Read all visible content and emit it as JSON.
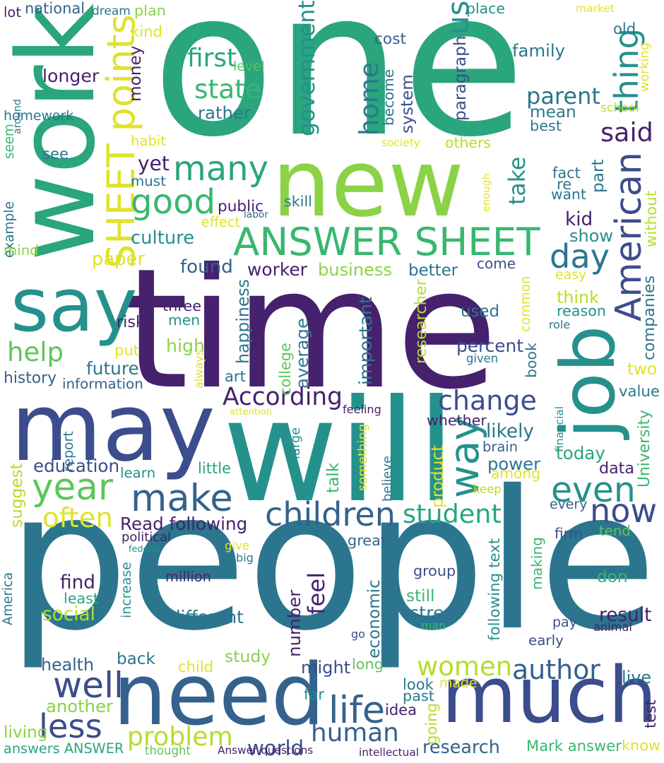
{
  "palette": {
    "dark_purple": "#46216d",
    "indigo": "#3b4d8c",
    "blue": "#34628c",
    "teal_blue": "#2b768e",
    "teal": "#24918c",
    "green_teal": "#2aa57e",
    "green": "#38b76f",
    "light_green": "#5ec55a",
    "lime": "#8bd247",
    "yellow_green": "#b6dd2d",
    "yellow": "#dfe32a"
  },
  "words": [
    {
      "text": "one",
      "color": "#2aa57e"
    },
    {
      "text": "people",
      "color": "#2b768e"
    },
    {
      "text": "time",
      "color": "#46216d"
    },
    {
      "text": "will",
      "color": "#24918c"
    },
    {
      "text": "may",
      "color": "#3b4d8c"
    },
    {
      "text": "work",
      "color": "#2aa57e"
    },
    {
      "text": "new",
      "color": "#8bd247"
    },
    {
      "text": "say",
      "color": "#24918c"
    },
    {
      "text": "need",
      "color": "#34628c"
    },
    {
      "text": "much",
      "color": "#3b4d8c"
    },
    {
      "text": "job",
      "color": "#24918c"
    },
    {
      "text": "ANSWER SHEET",
      "color": "#38b76f"
    },
    {
      "text": "SHEET points",
      "color": "#dfe32a"
    },
    {
      "text": "American",
      "color": "#3b4d8c"
    },
    {
      "text": "children",
      "color": "#34628c"
    },
    {
      "text": "make",
      "color": "#34628c"
    },
    {
      "text": "year",
      "color": "#5ec55a"
    },
    {
      "text": "many",
      "color": "#2aa57e"
    },
    {
      "text": "good",
      "color": "#38b76f"
    },
    {
      "text": "life",
      "color": "#34628c"
    },
    {
      "text": "human",
      "color": "#34628c"
    },
    {
      "text": "less",
      "color": "#3b4d8c"
    },
    {
      "text": "well",
      "color": "#3b4d8c"
    },
    {
      "text": "even",
      "color": "#24918c"
    },
    {
      "text": "now",
      "color": "#3b4d8c"
    },
    {
      "text": "way",
      "color": "#24918c"
    },
    {
      "text": "day",
      "color": "#2b768e"
    },
    {
      "text": "women",
      "color": "#b6dd2d"
    },
    {
      "text": "author",
      "color": "#34628c"
    },
    {
      "text": "problem",
      "color": "#b6dd2d"
    },
    {
      "text": "change",
      "color": "#3b4d8c"
    },
    {
      "text": "student",
      "color": "#2aa57e"
    },
    {
      "text": "help",
      "color": "#5ec55a"
    },
    {
      "text": "thing",
      "color": "#24918c"
    },
    {
      "text": "state",
      "color": "#38b76f"
    },
    {
      "text": "first",
      "color": "#2aa57e"
    },
    {
      "text": "us",
      "color": "#24918c"
    },
    {
      "text": "home",
      "color": "#2b768e"
    },
    {
      "text": "government",
      "color": "#24918c"
    },
    {
      "text": "take",
      "color": "#24918c"
    },
    {
      "text": "parent",
      "color": "#2b768e"
    },
    {
      "text": "said",
      "color": "#46216d"
    },
    {
      "text": "According",
      "color": "#46216d"
    },
    {
      "text": "world",
      "color": "#3b4d8c"
    },
    {
      "text": "often",
      "color": "#dfe32a"
    },
    {
      "text": "feel",
      "color": "#46216d"
    },
    {
      "text": "research",
      "color": "#34628c"
    },
    {
      "text": "Mark answer",
      "color": "#38b76f"
    },
    {
      "text": "longer",
      "color": "#46216d"
    },
    {
      "text": "family",
      "color": "#2b768e"
    },
    {
      "text": "rather",
      "color": "#2b768e"
    },
    {
      "text": "plan",
      "color": "#8bd247"
    },
    {
      "text": "national",
      "color": "#34628c"
    },
    {
      "text": "lot",
      "color": "#46216d"
    },
    {
      "text": "dream",
      "color": "#2b768e"
    },
    {
      "text": "place",
      "color": "#24918c"
    },
    {
      "text": "market",
      "color": "#dfe32a"
    },
    {
      "text": "old",
      "color": "#2b768e"
    },
    {
      "text": "cost",
      "color": "#34628c"
    },
    {
      "text": "kind",
      "color": "#dfe32a"
    },
    {
      "text": "money",
      "color": "#46216d"
    },
    {
      "text": "level",
      "color": "#5ec55a"
    },
    {
      "text": "paragraph",
      "color": "#3b4d8c"
    },
    {
      "text": "become",
      "color": "#2b768e"
    },
    {
      "text": "system",
      "color": "#3b4d8c"
    },
    {
      "text": "mean",
      "color": "#2b768e"
    },
    {
      "text": "best",
      "color": "#2b768e"
    },
    {
      "text": "school",
      "color": "#b6dd2d"
    },
    {
      "text": "working",
      "color": "#dfe32a"
    },
    {
      "text": "homework",
      "color": "#2b768e"
    },
    {
      "text": "around",
      "color": "#2b768e"
    },
    {
      "text": "seem",
      "color": "#38b76f"
    },
    {
      "text": "habit",
      "color": "#dfe32a"
    },
    {
      "text": "society",
      "color": "#dfe32a"
    },
    {
      "text": "others",
      "color": "#b6dd2d"
    },
    {
      "text": "see",
      "color": "#2b768e"
    },
    {
      "text": "yet",
      "color": "#46216d"
    },
    {
      "text": "must",
      "color": "#2b768e"
    },
    {
      "text": "fact",
      "color": "#2b768e"
    },
    {
      "text": "re",
      "color": "#2b768e"
    },
    {
      "text": "want",
      "color": "#2b768e"
    },
    {
      "text": "part",
      "color": "#2b768e"
    },
    {
      "text": "enough",
      "color": "#dfe32a"
    },
    {
      "text": "skill",
      "color": "#2b768e"
    },
    {
      "text": "labor",
      "color": "#34628c"
    },
    {
      "text": "public",
      "color": "#46216d"
    },
    {
      "text": "effect",
      "color": "#dfe32a"
    },
    {
      "text": "culture",
      "color": "#24918c"
    },
    {
      "text": "example",
      "color": "#2b768e"
    },
    {
      "text": "mind",
      "color": "#8bd247"
    },
    {
      "text": "kid",
      "color": "#46216d"
    },
    {
      "text": "show",
      "color": "#24918c"
    },
    {
      "text": "without",
      "color": "#b6dd2d"
    },
    {
      "text": "paper",
      "color": "#dfe32a"
    },
    {
      "text": "found",
      "color": "#34628c"
    },
    {
      "text": "worker",
      "color": "#46216d"
    },
    {
      "text": "business",
      "color": "#8bd247"
    },
    {
      "text": "better",
      "color": "#2b768e"
    },
    {
      "text": "come",
      "color": "#3b4d8c"
    },
    {
      "text": "easy",
      "color": "#dfe32a"
    },
    {
      "text": "happiness",
      "color": "#2b768e"
    },
    {
      "text": "researcher",
      "color": "#b6dd2d"
    },
    {
      "text": "think",
      "color": "#b6dd2d"
    },
    {
      "text": "reason",
      "color": "#24918c"
    },
    {
      "text": "companies",
      "color": "#2b768e"
    },
    {
      "text": "common",
      "color": "#dfe32a"
    },
    {
      "text": "risk",
      "color": "#46216d"
    },
    {
      "text": "three",
      "color": "#46216d"
    },
    {
      "text": "men",
      "color": "#24918c"
    },
    {
      "text": "used",
      "color": "#2b768e"
    },
    {
      "text": "role",
      "color": "#2b768e"
    },
    {
      "text": "average",
      "color": "#2b768e"
    },
    {
      "text": "important",
      "color": "#2b768e"
    },
    {
      "text": "high",
      "color": "#8bd247"
    },
    {
      "text": "put",
      "color": "#dfe32a"
    },
    {
      "text": "always",
      "color": "#dfe32a"
    },
    {
      "text": "college",
      "color": "#5ec55a"
    },
    {
      "text": "percent",
      "color": "#3b4d8c"
    },
    {
      "text": "book",
      "color": "#2b768e"
    },
    {
      "text": "two",
      "color": "#dfe32a"
    },
    {
      "text": "given",
      "color": "#2b768e"
    },
    {
      "text": "history",
      "color": "#34628c"
    },
    {
      "text": "art",
      "color": "#2b768e"
    },
    {
      "text": "future",
      "color": "#2b768e"
    },
    {
      "text": "information",
      "color": "#34628c"
    },
    {
      "text": "value",
      "color": "#2b768e"
    },
    {
      "text": "attention",
      "color": "#dfe32a"
    },
    {
      "text": "feeling",
      "color": "#46216d"
    },
    {
      "text": "financial",
      "color": "#24918c"
    },
    {
      "text": "University",
      "color": "#38b76f"
    },
    {
      "text": "report",
      "color": "#2b768e"
    },
    {
      "text": "large",
      "color": "#24918c"
    },
    {
      "text": "whether",
      "color": "#46216d"
    },
    {
      "text": "brain",
      "color": "#34628c"
    },
    {
      "text": "something",
      "color": "#dfe32a"
    },
    {
      "text": "likely",
      "color": "#2b768e"
    },
    {
      "text": "today",
      "color": "#2aa57e"
    },
    {
      "text": "power",
      "color": "#2b768e"
    },
    {
      "text": "among",
      "color": "#dfe32a"
    },
    {
      "text": "data",
      "color": "#46216d"
    },
    {
      "text": "education",
      "color": "#3b4d8c"
    },
    {
      "text": "suggest",
      "color": "#b6dd2d"
    },
    {
      "text": "learn",
      "color": "#24918c"
    },
    {
      "text": "little",
      "color": "#2aa57e"
    },
    {
      "text": "talk",
      "color": "#38b76f"
    },
    {
      "text": "believe",
      "color": "#2b768e"
    },
    {
      "text": "product",
      "color": "#dfe32a"
    },
    {
      "text": "keep",
      "color": "#b6dd2d"
    },
    {
      "text": "every",
      "color": "#34628c"
    },
    {
      "text": "tend",
      "color": "#5ec55a"
    },
    {
      "text": "firm",
      "color": "#3b4d8c"
    },
    {
      "text": "Read following",
      "color": "#46216d"
    },
    {
      "text": "political",
      "color": "#46216d"
    },
    {
      "text": "federal",
      "color": "#24918c"
    },
    {
      "text": "give",
      "color": "#dfe32a"
    },
    {
      "text": "big",
      "color": "#2b768e"
    },
    {
      "text": "great",
      "color": "#34628c"
    },
    {
      "text": "following text",
      "color": "#24918c"
    },
    {
      "text": "making",
      "color": "#38b76f"
    },
    {
      "text": "find",
      "color": "#46216d"
    },
    {
      "text": "least",
      "color": "#2aa57e"
    },
    {
      "text": "million",
      "color": "#46216d"
    },
    {
      "text": "increase",
      "color": "#24918c"
    },
    {
      "text": "number",
      "color": "#46216d"
    },
    {
      "text": "group",
      "color": "#3b4d8c"
    },
    {
      "text": "still",
      "color": "#38b76f"
    },
    {
      "text": "stress",
      "color": "#2b768e"
    },
    {
      "text": "don",
      "color": "#38b76f"
    },
    {
      "text": "social",
      "color": "#b6dd2d"
    },
    {
      "text": "different",
      "color": "#2b768e"
    },
    {
      "text": "economic",
      "color": "#2b768e"
    },
    {
      "text": "result",
      "color": "#46216d"
    },
    {
      "text": "man",
      "color": "#38b76f"
    },
    {
      "text": "pay",
      "color": "#3b4d8c"
    },
    {
      "text": "animal",
      "color": "#46216d"
    },
    {
      "text": "early",
      "color": "#3b4d8c"
    },
    {
      "text": "America",
      "color": "#2b768e"
    },
    {
      "text": "go",
      "color": "#3b4d8c"
    },
    {
      "text": "study",
      "color": "#8bd247"
    },
    {
      "text": "health",
      "color": "#34628c"
    },
    {
      "text": "back",
      "color": "#2b768e"
    },
    {
      "text": "might",
      "color": "#3b4d8c"
    },
    {
      "text": "long",
      "color": "#5ec55a"
    },
    {
      "text": "child",
      "color": "#dfe32a"
    },
    {
      "text": "another",
      "color": "#8bd247"
    },
    {
      "text": "look",
      "color": "#2b768e"
    },
    {
      "text": "made",
      "color": "#dfe32a"
    },
    {
      "text": "past",
      "color": "#2b768e"
    },
    {
      "text": "idea",
      "color": "#46216d"
    },
    {
      "text": "going",
      "color": "#b6dd2d"
    },
    {
      "text": "far",
      "color": "#24918c"
    },
    {
      "text": "live",
      "color": "#2b768e"
    },
    {
      "text": "test",
      "color": "#46216d"
    },
    {
      "text": "living",
      "color": "#8bd247"
    },
    {
      "text": "answers ANSWER",
      "color": "#2aa57e"
    },
    {
      "text": "thought",
      "color": "#5ec55a"
    },
    {
      "text": "Answer questions",
      "color": "#46216d"
    },
    {
      "text": "intellectual",
      "color": "#46216d"
    },
    {
      "text": "know",
      "color": "#dfe32a"
    }
  ]
}
